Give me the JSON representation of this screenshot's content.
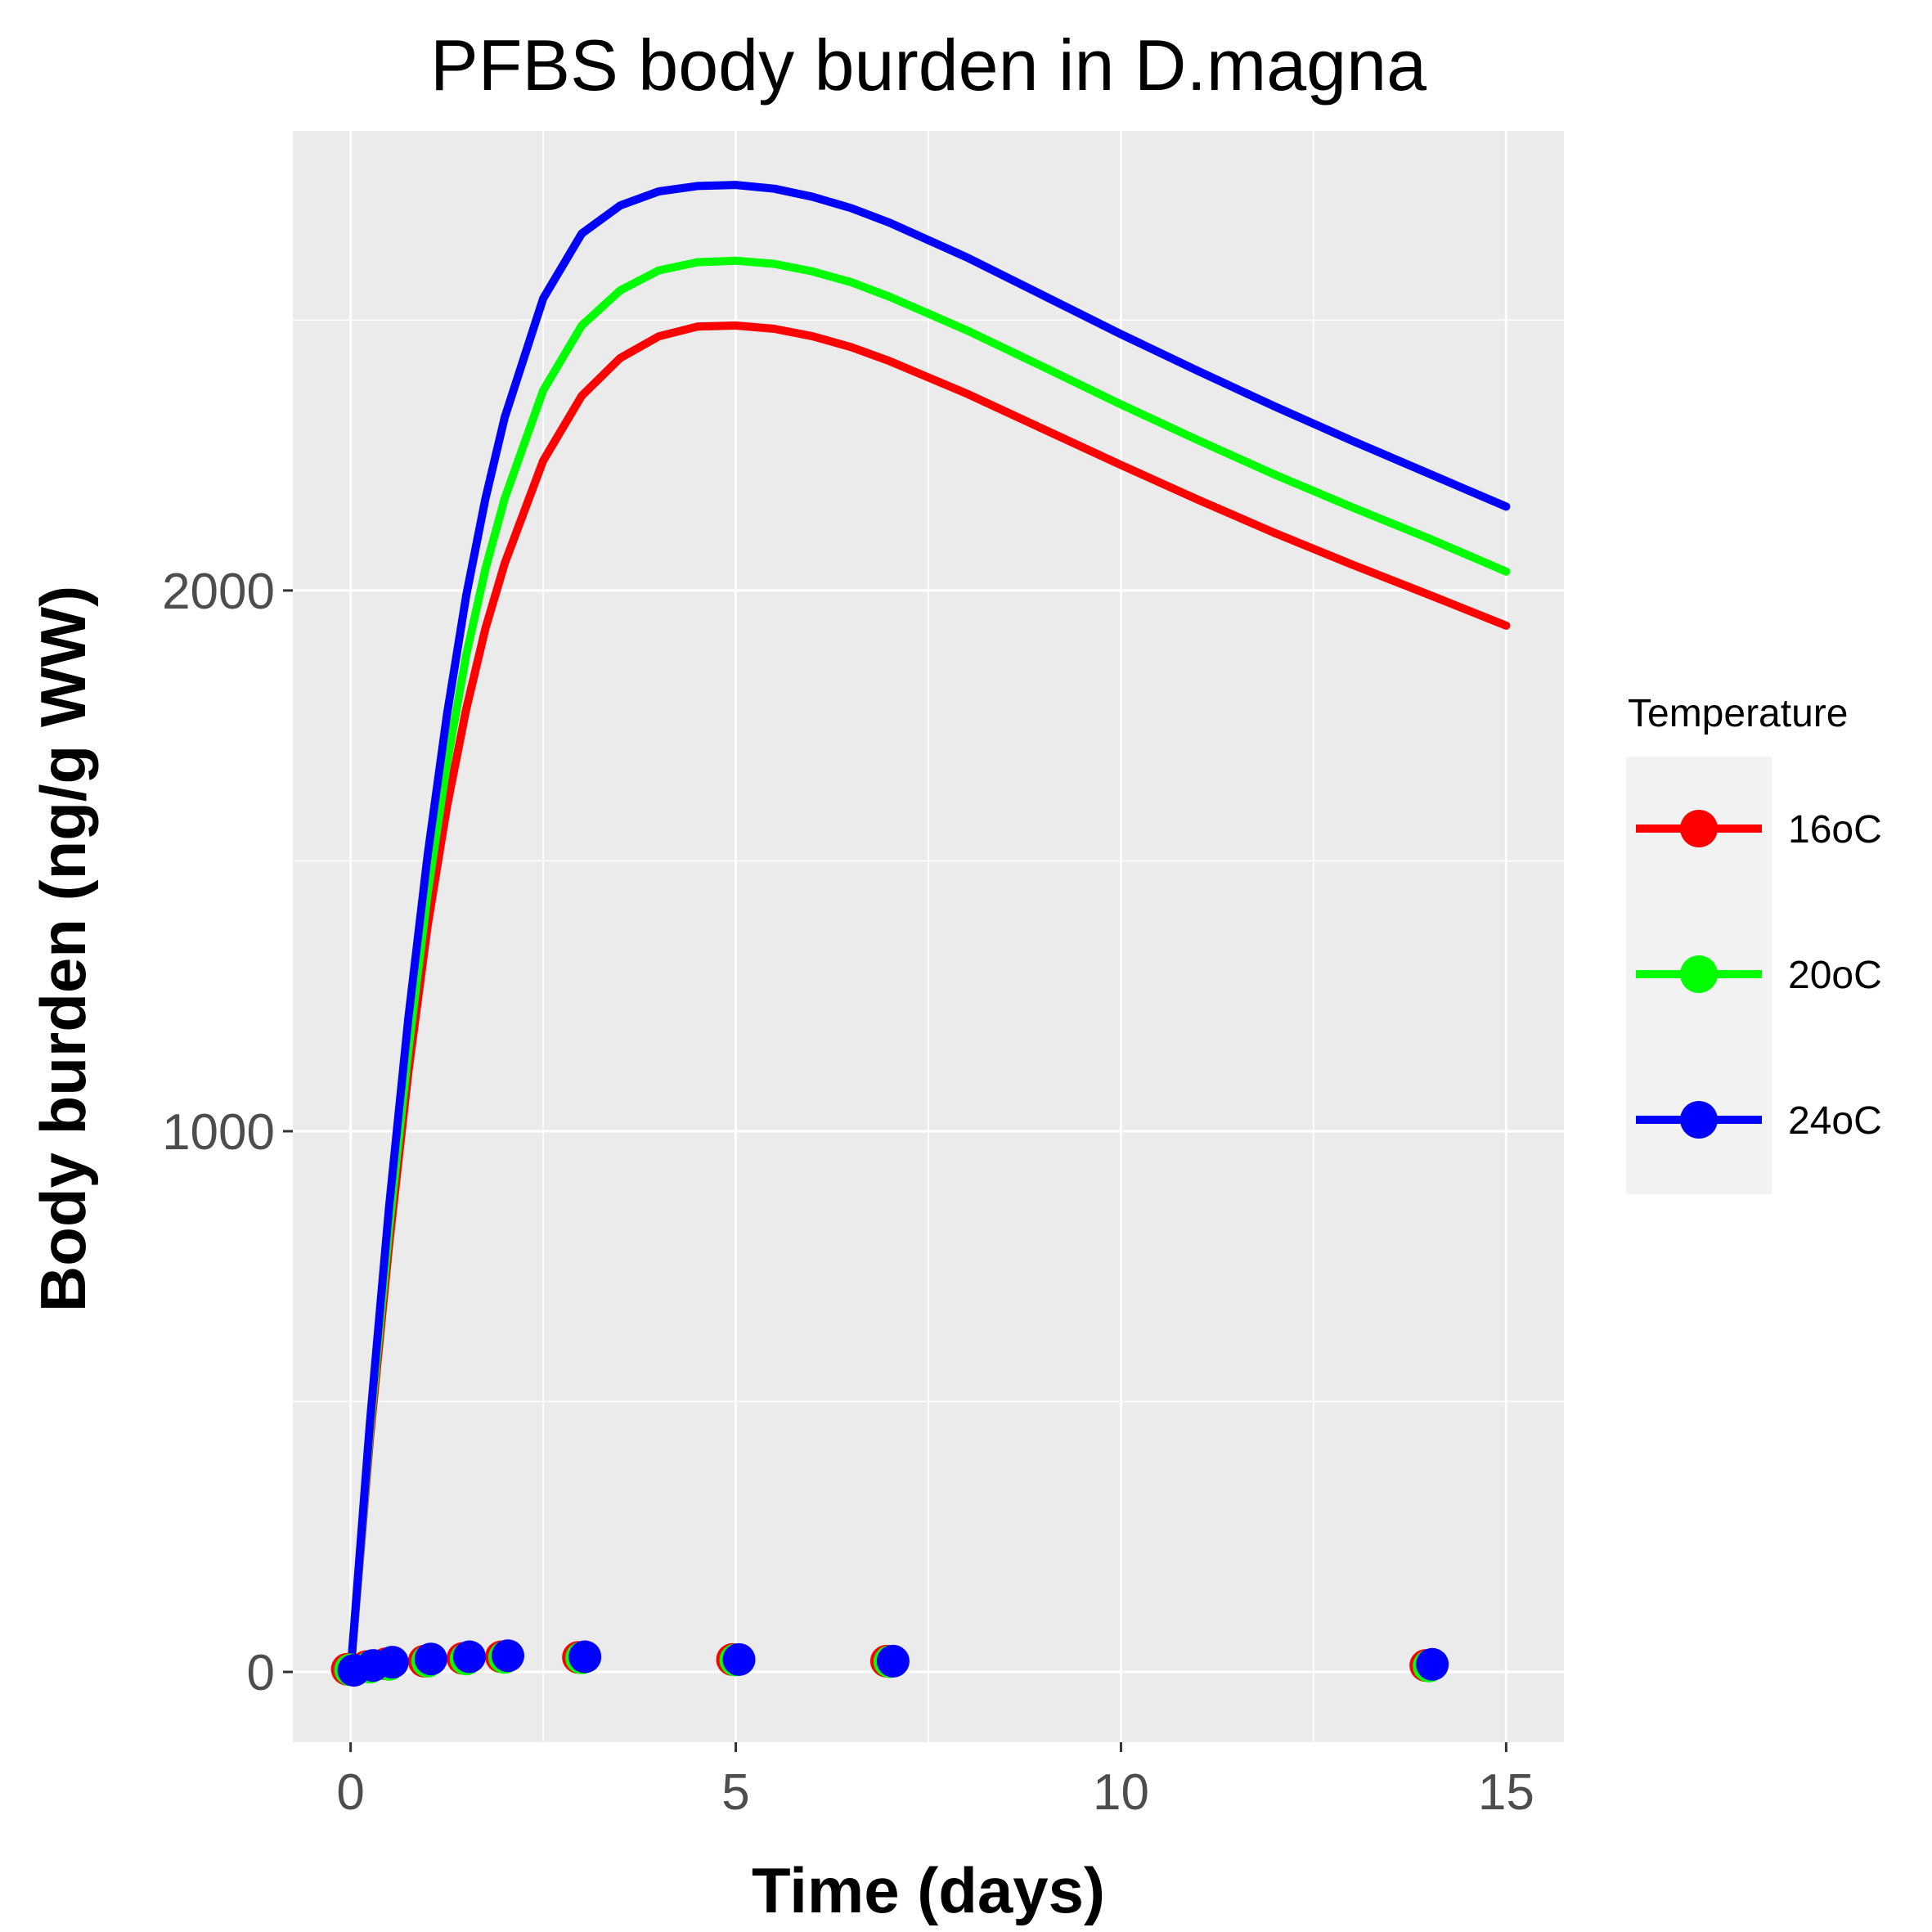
{
  "chart_data": {
    "type": "line",
    "title": "PFBS body burden in D.magna",
    "xlabel": "Time (days)",
    "ylabel": "Body burden (ng/g WW)",
    "xlim": [
      -0.75,
      15.75
    ],
    "ylim": [
      -130,
      2850
    ],
    "x_ticks": [
      0,
      5,
      10,
      15
    ],
    "x_tick_labels": [
      "0",
      "5",
      "10",
      "15"
    ],
    "y_ticks": [
      0,
      1000,
      2000
    ],
    "y_tick_labels": [
      "0",
      "1000",
      "2000"
    ],
    "grid": true,
    "legend": {
      "title": "Temperature",
      "position": "right"
    },
    "series": [
      {
        "name": "16oC",
        "color": "#ff0000",
        "line": {
          "x": [
            0,
            0.25,
            0.5,
            0.75,
            1,
            1.25,
            1.5,
            1.75,
            2,
            2.5,
            3,
            3.5,
            4,
            4.5,
            5,
            5.5,
            6,
            6.5,
            7,
            8,
            9,
            10,
            11,
            12,
            13,
            14,
            15
          ],
          "y": [
            0,
            430,
            790,
            1110,
            1380,
            1600,
            1780,
            1930,
            2050,
            2240,
            2360,
            2430,
            2470,
            2488,
            2490,
            2484,
            2470,
            2450,
            2424,
            2364,
            2298,
            2232,
            2168,
            2106,
            2048,
            1992,
            1935
          ]
        },
        "points": {
          "x": [
            0,
            0.25,
            0.5,
            1,
            1.5,
            2,
            3,
            5,
            7,
            14
          ],
          "y": [
            5,
            10,
            15,
            20,
            25,
            28,
            27,
            23,
            20,
            12
          ]
        }
      },
      {
        "name": "20oC",
        "color": "#00ff00",
        "line": {
          "x": [
            0,
            0.25,
            0.5,
            0.75,
            1,
            1.25,
            1.5,
            1.75,
            2,
            2.5,
            3,
            3.5,
            4,
            4.5,
            5,
            5.5,
            6,
            6.5,
            7,
            8,
            9,
            10,
            11,
            12,
            13,
            14,
            15
          ],
          "y": [
            0,
            445,
            820,
            1150,
            1440,
            1680,
            1880,
            2040,
            2170,
            2370,
            2490,
            2555,
            2592,
            2607,
            2610,
            2604,
            2590,
            2570,
            2543,
            2481,
            2413,
            2344,
            2278,
            2214,
            2154,
            2096,
            2035
          ]
        },
        "points": {
          "x": [
            0,
            0.25,
            0.5,
            1,
            1.5,
            2,
            3,
            5,
            7,
            14
          ],
          "y": [
            4,
            9,
            14,
            20,
            24,
            27,
            26,
            22,
            19,
            11
          ]
        }
      },
      {
        "name": "24oC",
        "color": "#0000ff",
        "line": {
          "x": [
            0,
            0.25,
            0.5,
            0.75,
            1,
            1.25,
            1.5,
            1.75,
            2,
            2.5,
            3,
            3.5,
            4,
            4.5,
            5,
            5.5,
            6,
            6.5,
            7,
            8,
            9,
            10,
            11,
            12,
            13,
            14,
            15
          ],
          "y": [
            0,
            460,
            860,
            1210,
            1510,
            1770,
            1990,
            2170,
            2320,
            2540,
            2660,
            2712,
            2738,
            2748,
            2750,
            2743,
            2728,
            2707,
            2680,
            2616,
            2545,
            2474,
            2406,
            2340,
            2277,
            2216,
            2155
          ]
        },
        "points": {
          "x": [
            0,
            0.25,
            0.5,
            1,
            1.5,
            2,
            3,
            5,
            7,
            14
          ],
          "y": [
            3,
            12,
            18,
            24,
            28,
            30,
            28,
            23,
            20,
            14
          ]
        }
      }
    ]
  }
}
